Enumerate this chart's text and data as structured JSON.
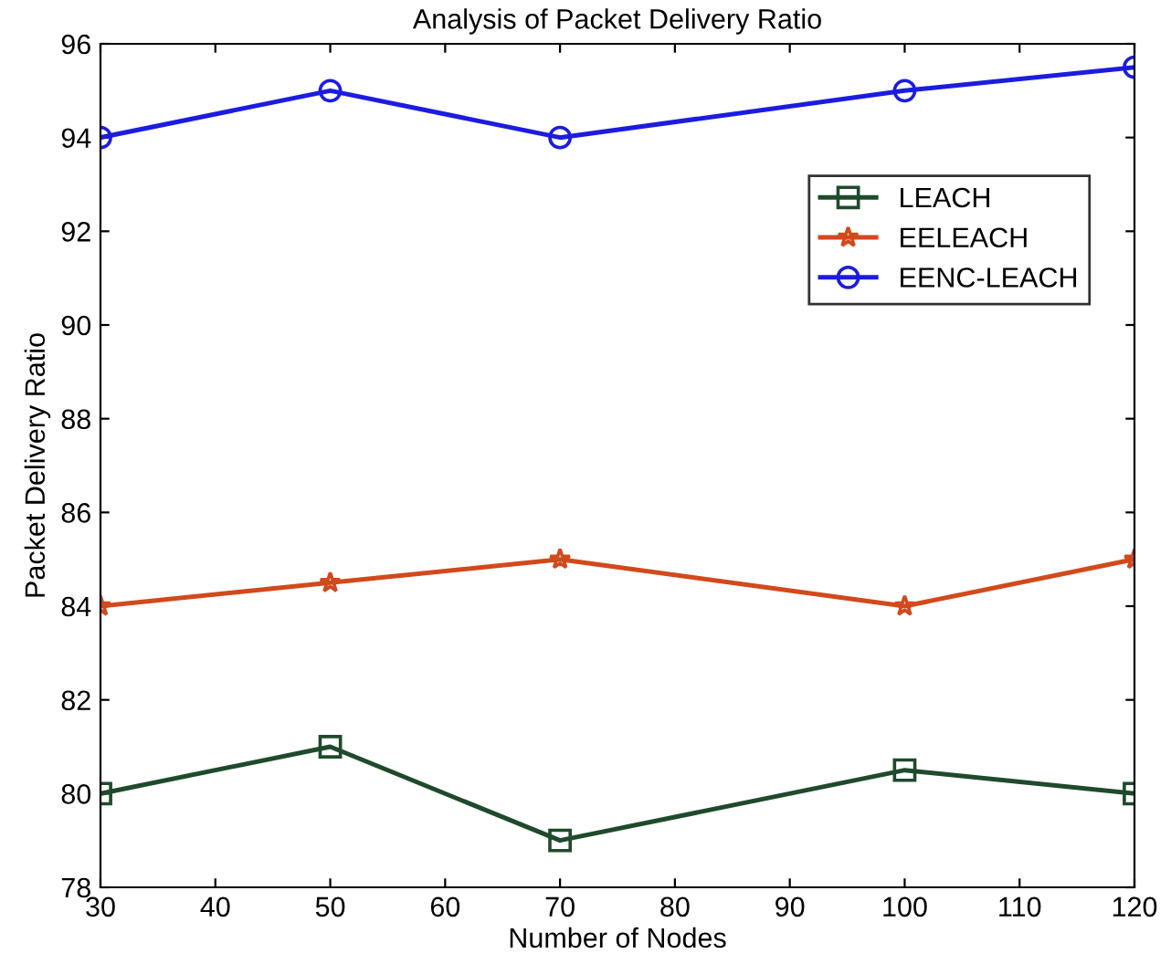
{
  "chart_data": {
    "type": "line",
    "title": "Analysis of Packet Delivery Ratio",
    "xlabel": "Number of Nodes",
    "ylabel": "Packet Delivery Ratio",
    "x": [
      30,
      50,
      70,
      100,
      120
    ],
    "series": [
      {
        "name": "LEACH",
        "color": "#1f4a2c",
        "marker": "square",
        "values": [
          80,
          81,
          79,
          80.5,
          80
        ]
      },
      {
        "name": "EELEACH",
        "color": "#d2491c",
        "marker": "star",
        "values": [
          84,
          84.5,
          85,
          84,
          85
        ]
      },
      {
        "name": "EENC-LEACH",
        "color": "#1c1ce0",
        "marker": "circle",
        "values": [
          94,
          95,
          94,
          95,
          95.5
        ]
      }
    ],
    "xlim": [
      30,
      120
    ],
    "xticks": [
      30,
      40,
      50,
      60,
      70,
      80,
      90,
      100,
      110,
      120
    ],
    "ylim": [
      78,
      96
    ],
    "yticks": [
      78,
      80,
      82,
      84,
      86,
      88,
      90,
      92,
      94,
      96
    ],
    "grid": false,
    "legend": "top right",
    "line_style": "solid"
  }
}
